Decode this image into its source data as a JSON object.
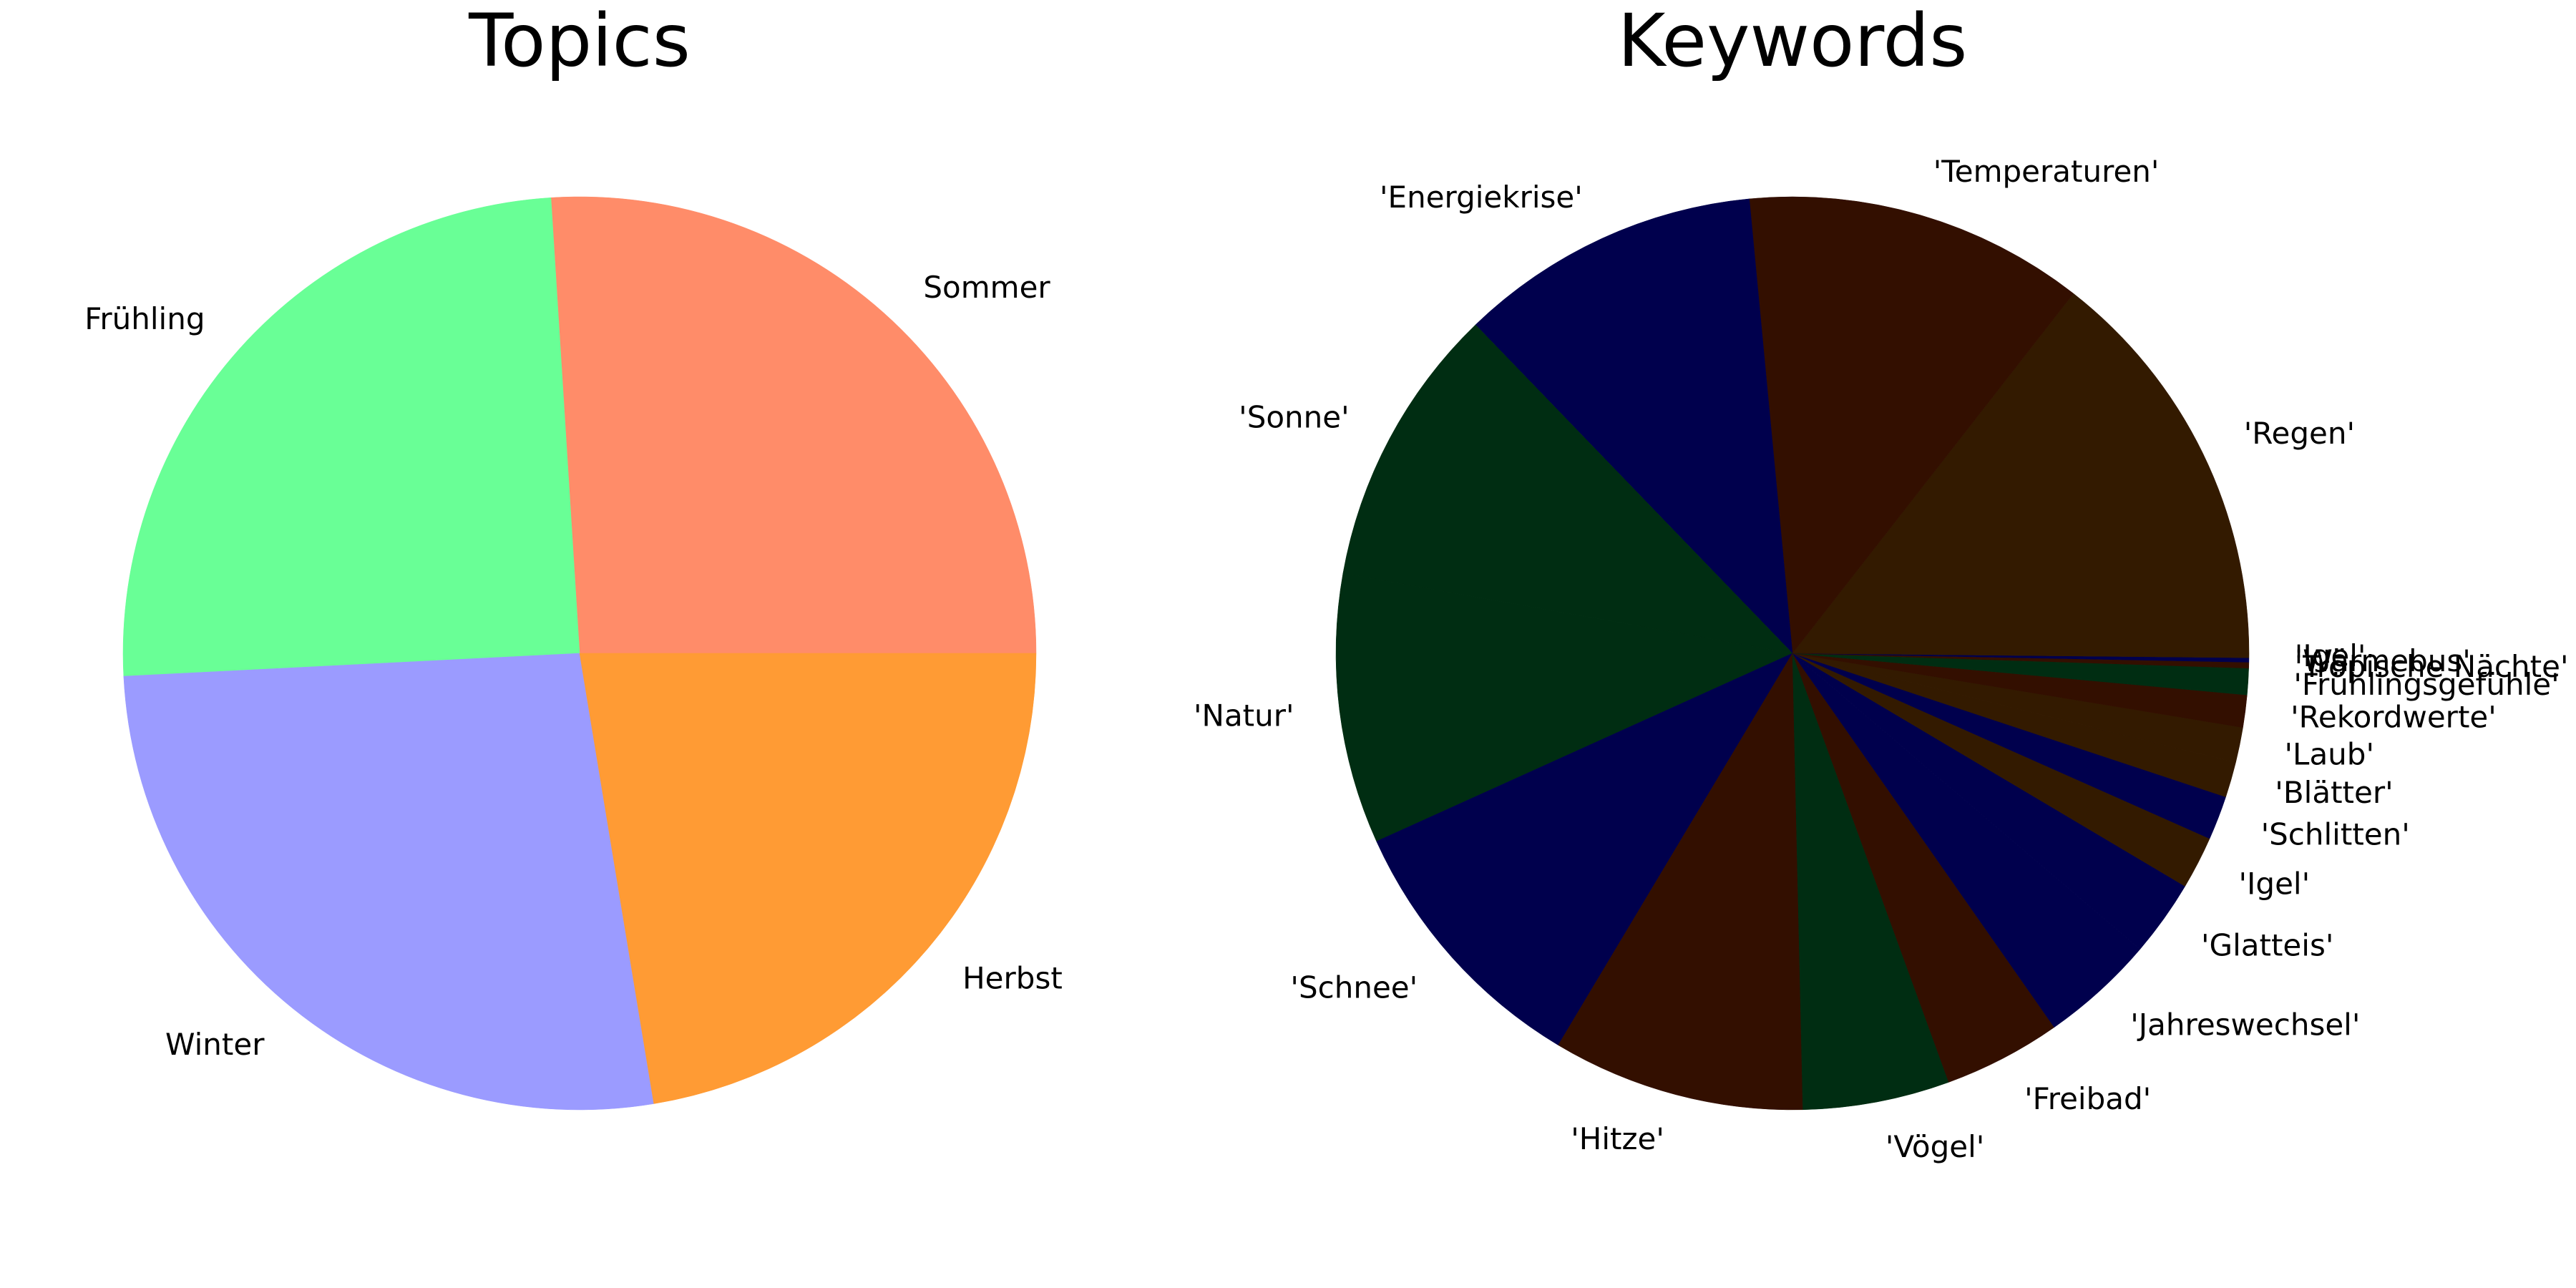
{
  "chart_data": [
    {
      "type": "pie",
      "title": "Topics",
      "start_angle_deg": 0,
      "direction": "counterclockwise",
      "slices": [
        {
          "label": "Sommer",
          "value": 26.0,
          "color": "#FF8C69"
        },
        {
          "label": "Frühling",
          "value": 24.8,
          "color": "#69FF96"
        },
        {
          "label": "Winter",
          "value": 26.8,
          "color": "#9B9BFF"
        },
        {
          "label": "Herbst",
          "value": 22.4,
          "color": "#FF9B34"
        }
      ]
    },
    {
      "type": "pie",
      "title": "Keywords",
      "start_angle_deg": 0,
      "direction": "counterclockwise",
      "slices": [
        {
          "label": "'Regen'",
          "value": 13.9,
          "color": "#331A00"
        },
        {
          "label": "'Temperaturen'",
          "value": 11.6,
          "color": "#330F00"
        },
        {
          "label": "'Energiekrise'",
          "value": 10.3,
          "color": "#00004D"
        },
        {
          "label": "'Sonne'",
          "value": 9.6,
          "color": "#002D12"
        },
        {
          "label": "'Natur'",
          "value": 9.2,
          "color": "#002D12"
        },
        {
          "label": "'Schnee'",
          "value": 9.3,
          "color": "#00004D"
        },
        {
          "label": "'Hitze'",
          "value": 8.6,
          "color": "#330F00"
        },
        {
          "label": "'Vögel'",
          "value": 5.0,
          "color": "#002D12"
        },
        {
          "label": "'Freibad'",
          "value": 4.0,
          "color": "#330F00"
        },
        {
          "label": "'Jahreswechsel'",
          "value": 3.9,
          "color": "#00004D"
        },
        {
          "label": "'Glatteis'",
          "value": 2.6,
          "color": "#00004D"
        },
        {
          "label": "'Igel'",
          "value": 1.8,
          "color": "#331A00"
        },
        {
          "label": "'Schlitten'",
          "value": 1.5,
          "color": "#00004D"
        },
        {
          "label": "'Blätter'",
          "value": 1.2,
          "color": "#331A00"
        },
        {
          "label": "'Laub'",
          "value": 1.2,
          "color": "#331A00"
        },
        {
          "label": "'Rekordwerte'",
          "value": 1.1,
          "color": "#330F00"
        },
        {
          "label": "'Frühlingsgefühle'",
          "value": 0.9,
          "color": "#002D12"
        },
        {
          "label": "'Tropische Nächte'",
          "value": 0.2,
          "color": "#330F00"
        },
        {
          "label": "'Wärmebus'",
          "value": 0.15,
          "color": "#00004D"
        },
        {
          "label": "'Igel'",
          "value": 0.15,
          "color": "#331A00"
        }
      ]
    }
  ]
}
